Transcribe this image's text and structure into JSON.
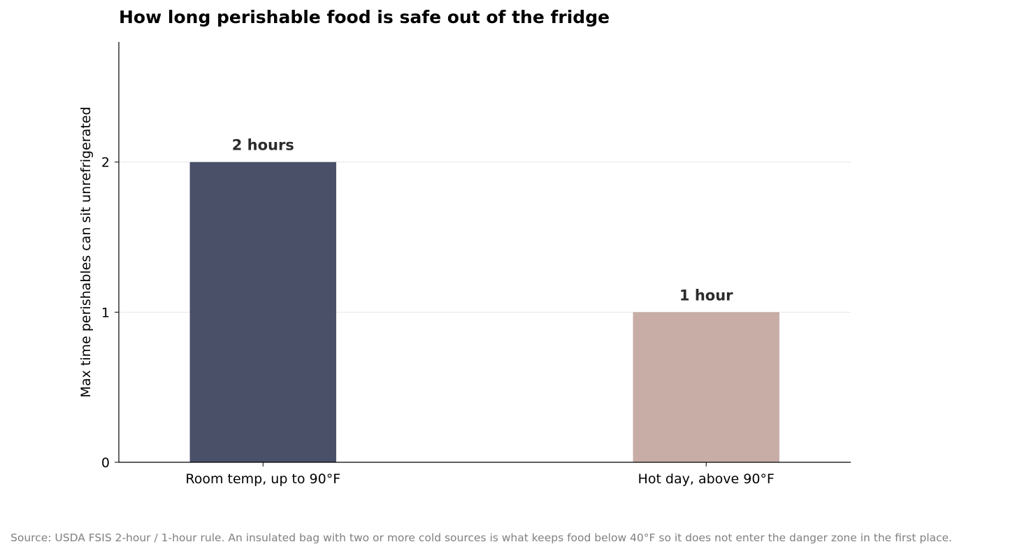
{
  "chart_data": {
    "type": "bar",
    "title": "How long perishable food is safe out of the fridge",
    "categories": [
      "Room temp, up to 90°F",
      "Hot day, above 90°F"
    ],
    "values": [
      2,
      1
    ],
    "data_labels": [
      "2 hours",
      "1 hour"
    ],
    "colors": [
      "#4a5068",
      "#c8ada7"
    ],
    "xlabel": "",
    "ylabel": "Max time perishables can sit unrefrigerated",
    "ylim": [
      0,
      2.8
    ],
    "yticks": [
      0,
      1,
      2
    ],
    "grid": "horizontal",
    "source": "Source: USDA FSIS 2-hour / 1-hour rule. An insulated bag with two or more cold sources is what keeps food below 40°F so it does not enter the danger zone in the first place."
  }
}
